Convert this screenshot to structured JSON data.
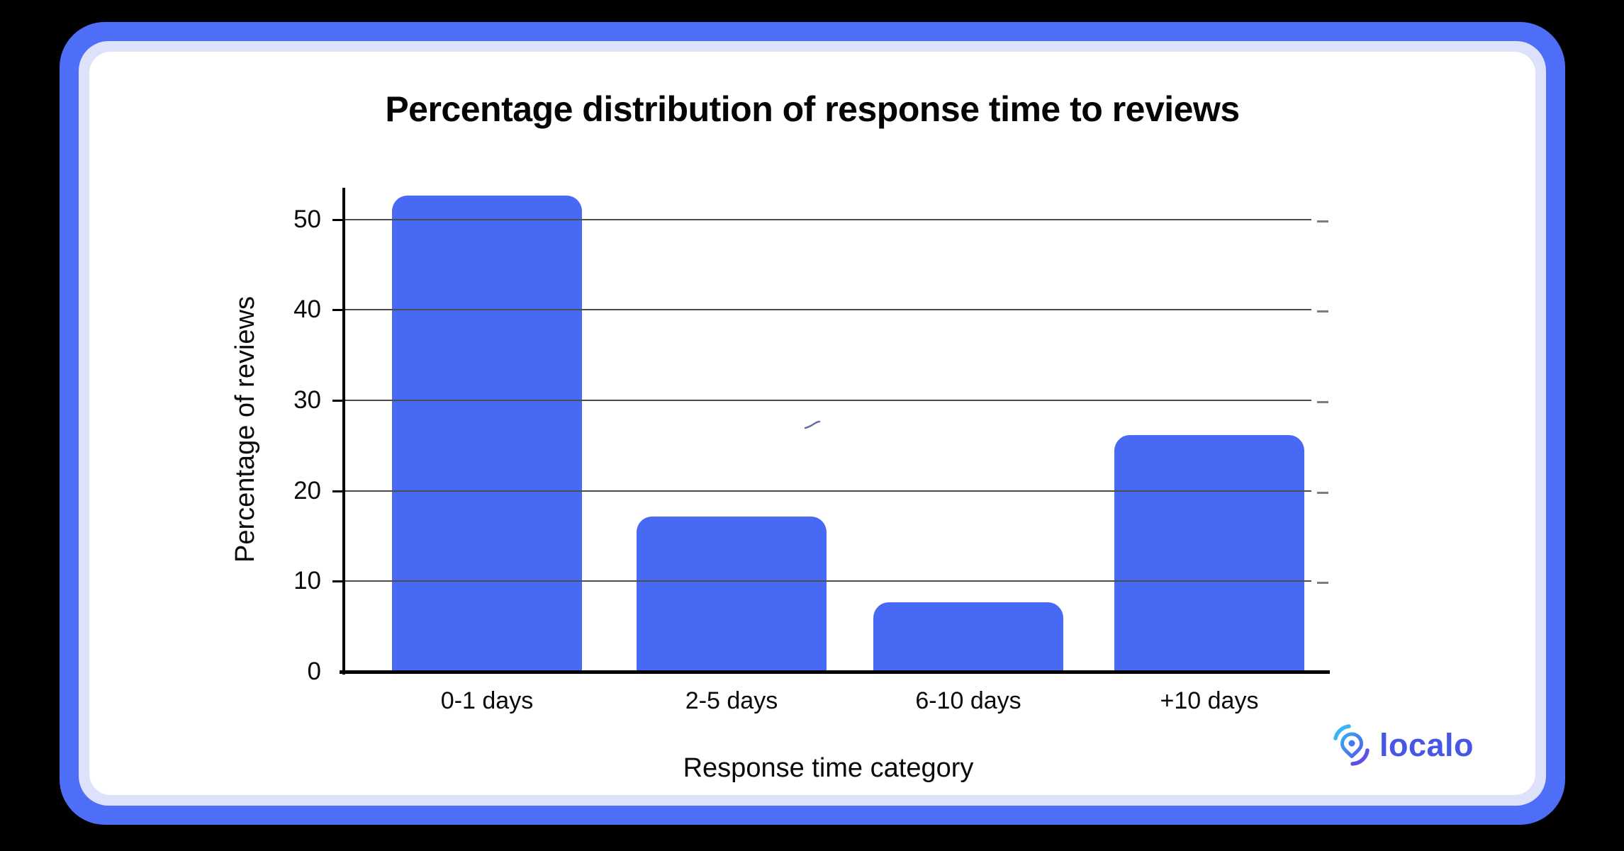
{
  "chart_data": {
    "type": "bar",
    "title": "Percentage distribution of response time to reviews",
    "categories": [
      "0-1 days",
      "2-5 days",
      "6-10 days",
      "+10 days"
    ],
    "values": [
      52.5,
      17,
      7.5,
      26
    ],
    "xlabel": "Response time category",
    "ylabel": "Percentage of reviews",
    "yticks": [
      0,
      10,
      20,
      30,
      40,
      50
    ],
    "ylim": [
      0,
      53.5
    ],
    "grid": true,
    "legend_position": "none",
    "bar_color": "#4769F4",
    "gridline_color": "#4D4D4D",
    "axis_color": "#000000"
  },
  "branding": {
    "logo_text": "localo",
    "logo_color": "#4656E6",
    "logo_icon": "localo-pin-icon",
    "logo_icon_colors": {
      "arc_top": "#3AB5F4",
      "arc_bottom": "#5B50E9",
      "pin": "#4178EF"
    }
  },
  "frame": {
    "background": "#000000",
    "outer_border_color": "#4F6EF7",
    "inner_border_color": "#DDE1F9",
    "card_background": "#FFFFFF"
  }
}
